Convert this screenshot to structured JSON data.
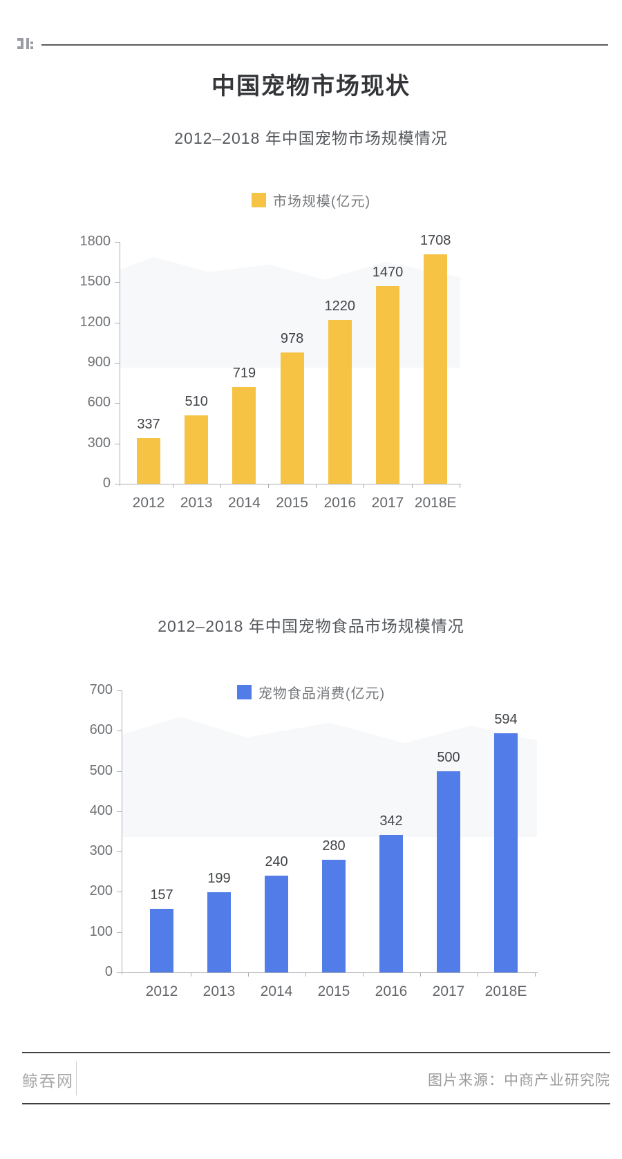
{
  "header": {
    "logo_icon": "pixel-brand-logo",
    "rule_color": "#5b5b5b"
  },
  "title": "中国宠物市场现状",
  "footer": {
    "site": "鲸吞网",
    "source": "图片来源：中商产业研究院"
  },
  "chart_data": [
    {
      "type": "bar",
      "title": "2012–2018 年中国宠物市场规模情况",
      "legend": "市场规模(亿元)",
      "legend_position": "top-center",
      "categories": [
        "2012",
        "2013",
        "2014",
        "2015",
        "2016",
        "2017",
        "2018E"
      ],
      "values": [
        337,
        510,
        719,
        978,
        1220,
        1470,
        1708
      ],
      "bar_color": "#F6C344",
      "ylim": [
        0,
        1800
      ],
      "ytick_step": 300,
      "grid": false,
      "value_labels": true
    },
    {
      "type": "bar",
      "title": "2012–2018 年中国宠物食品市场规模情况",
      "legend": "宠物食品消费(亿元)",
      "legend_position": "top-center",
      "categories": [
        "2012",
        "2013",
        "2014",
        "2015",
        "2016",
        "2017",
        "2018E"
      ],
      "values": [
        157,
        199,
        240,
        280,
        342,
        500,
        594
      ],
      "bar_color": "#527CE8",
      "ylim": [
        0,
        700
      ],
      "ytick_step": 100,
      "grid": false,
      "value_labels": true
    }
  ]
}
